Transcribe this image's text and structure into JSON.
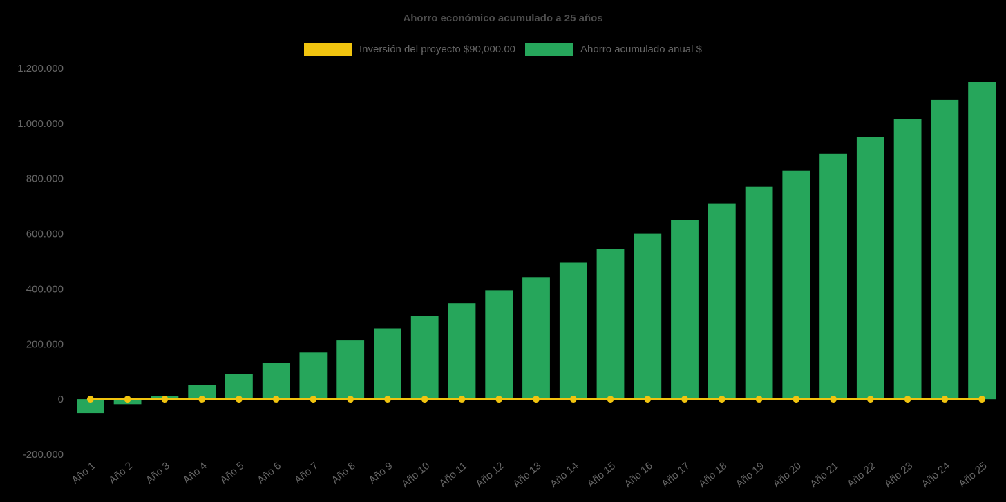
{
  "title": "Ahorro económico acumulado a 25 años",
  "colors": {
    "background": "#000000",
    "bar": "#26A65B",
    "line": "#F1C40F",
    "text": "#666666",
    "title": "#4D4D4D"
  },
  "legend": [
    {
      "label": "Inversión del proyecto $90,000.00",
      "color": "#F1C40F",
      "series_type": "line"
    },
    {
      "label": "Ahorro acumulado anual $",
      "color": "#26A65B",
      "series_type": "bar"
    }
  ],
  "chart_data": {
    "type": "bar",
    "title": "Ahorro económico acumulado a 25 años",
    "xlabel": "",
    "ylabel": "",
    "ylim": [
      -200000,
      1200000
    ],
    "grid": false,
    "legend_position": "top",
    "categories": [
      "Año 1",
      "Año 2",
      "Año 3",
      "Año 4",
      "Año 5",
      "Año 6",
      "Año 7",
      "Año 8",
      "Año 9",
      "Año 10",
      "Año 11",
      "Año 12",
      "Año 13",
      "Año 14",
      "Año 15",
      "Año 16",
      "Año 17",
      "Año 18",
      "Año 19",
      "Año 20",
      "Año 21",
      "Año 22",
      "Año 23",
      "Año 24",
      "Año 25"
    ],
    "series": [
      {
        "name": "Ahorro acumulado anual $",
        "type": "bar",
        "color": "#26A65B",
        "values": [
          -50000,
          -18000,
          12000,
          52000,
          92000,
          132000,
          170000,
          213000,
          257000,
          303000,
          348000,
          395000,
          443000,
          495000,
          545000,
          600000,
          650000,
          710000,
          770000,
          830000,
          890000,
          950000,
          1015000,
          1085000,
          1150000
        ]
      },
      {
        "name": "Inversión del proyecto $90,000.00",
        "type": "line",
        "color": "#F1C40F",
        "value": 0
      }
    ],
    "y_ticks": {
      "labels": [
        "1.200.000",
        "1.000.000",
        "800.000",
        "600.000",
        "400.000",
        "200.000",
        "0",
        "-200.000"
      ],
      "values": [
        1200000,
        1000000,
        800000,
        600000,
        400000,
        200000,
        0,
        -200000
      ]
    }
  }
}
